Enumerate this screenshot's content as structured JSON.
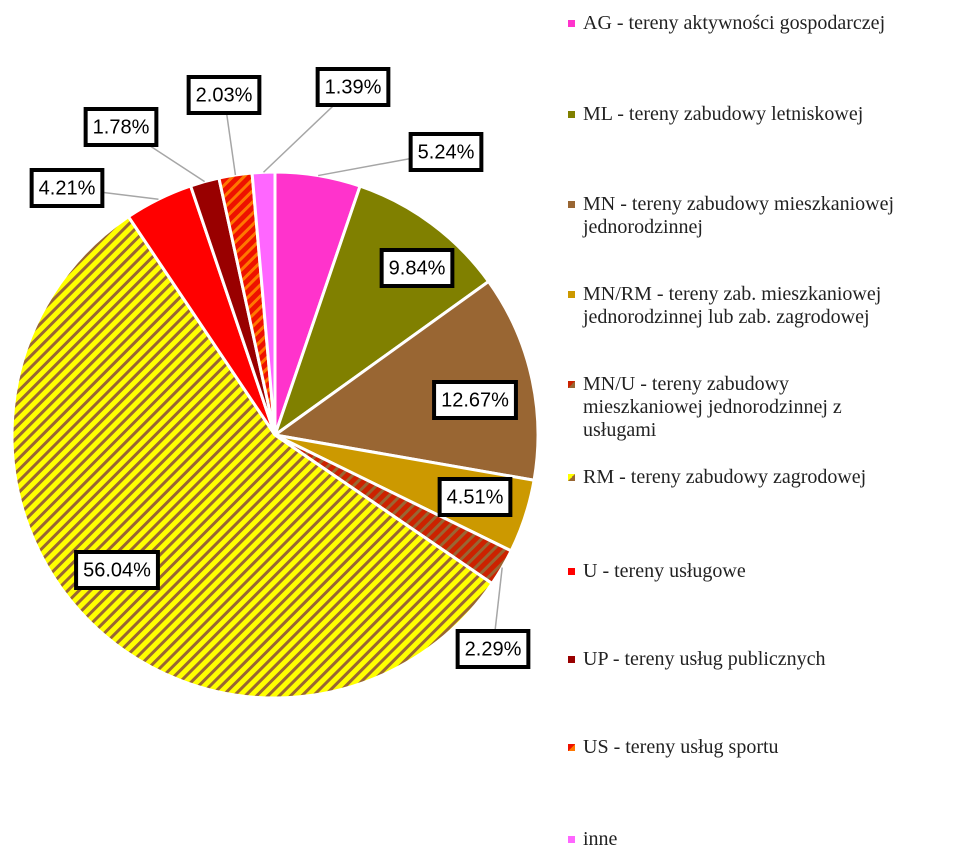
{
  "chart_data": {
    "type": "pie",
    "categories": [
      "AG - tereny aktywności gospodarczej",
      "ML - tereny zabudowy letniskowej",
      "MN - tereny zabudowy mieszkaniowej jednorodzinnej",
      "MN/RM - tereny zab. mieszkaniowej jednorodzinnej lub zab. zagrodowej",
      "MN/U - tereny zabudowy mieszkaniowej jednorodzinnej z usługami",
      "RM - tereny zabudowy zagrodowej",
      "U - tereny usługowe",
      "UP - tereny usług publicznych",
      "US - tereny usług sportu",
      "inne"
    ],
    "values": [
      5.24,
      9.84,
      12.67,
      4.51,
      2.29,
      56.04,
      4.21,
      1.78,
      2.03,
      1.39
    ],
    "value_labels": [
      "5.24%",
      "9.84%",
      "12.67%",
      "4.51%",
      "2.29%",
      "56.04%",
      "4.21%",
      "1.78%",
      "2.03%",
      "1.39%"
    ],
    "colors": [
      "#ff33cc",
      "#808000",
      "#996633",
      "#cc9900",
      "#cc2200",
      "#ffff00",
      "#ff0000",
      "#990000",
      "#ee1100",
      "#ff66ff"
    ],
    "stripe_colors": [
      null,
      null,
      null,
      null,
      "#996633",
      "#996633",
      null,
      null,
      "#ff7700",
      null
    ],
    "legend": "right"
  }
}
